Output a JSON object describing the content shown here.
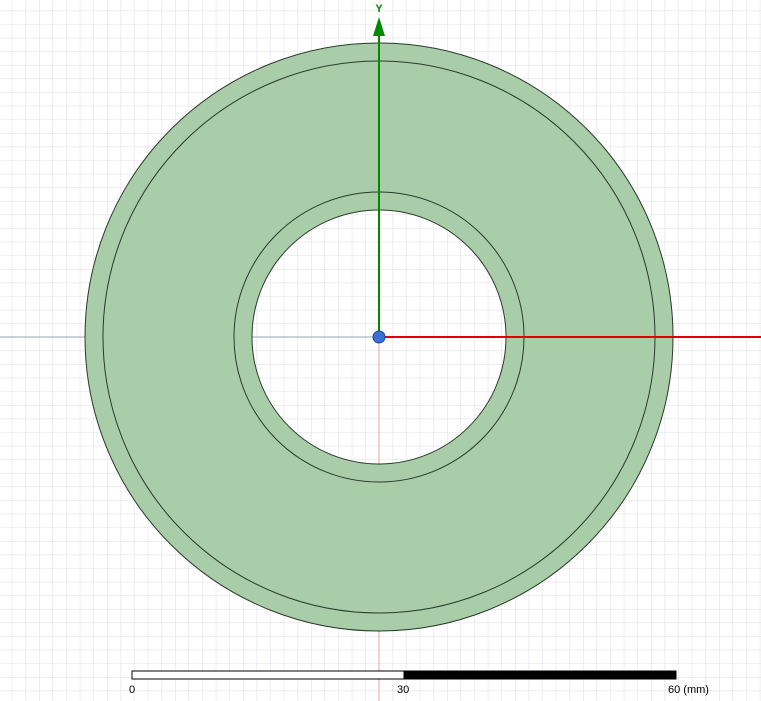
{
  "colors": {
    "background": "#ffffff",
    "grid_line": "#dcdce6",
    "model_fill": "#a8cda8",
    "model_edge": "#2a3a2a",
    "x_axis": "#e00000",
    "y_axis": "#008a00",
    "origin": "#3a6fd8",
    "scale_dark": "#000000",
    "scale_light": "#ffffff"
  },
  "axes": {
    "y_label": "Y"
  },
  "scale_bar": {
    "labels": {
      "start": "0",
      "mid": "30",
      "end": "60 (mm)"
    }
  },
  "icons": {
    "origin": "origin-triad-icon",
    "y_arrow": "arrow-up-icon"
  }
}
